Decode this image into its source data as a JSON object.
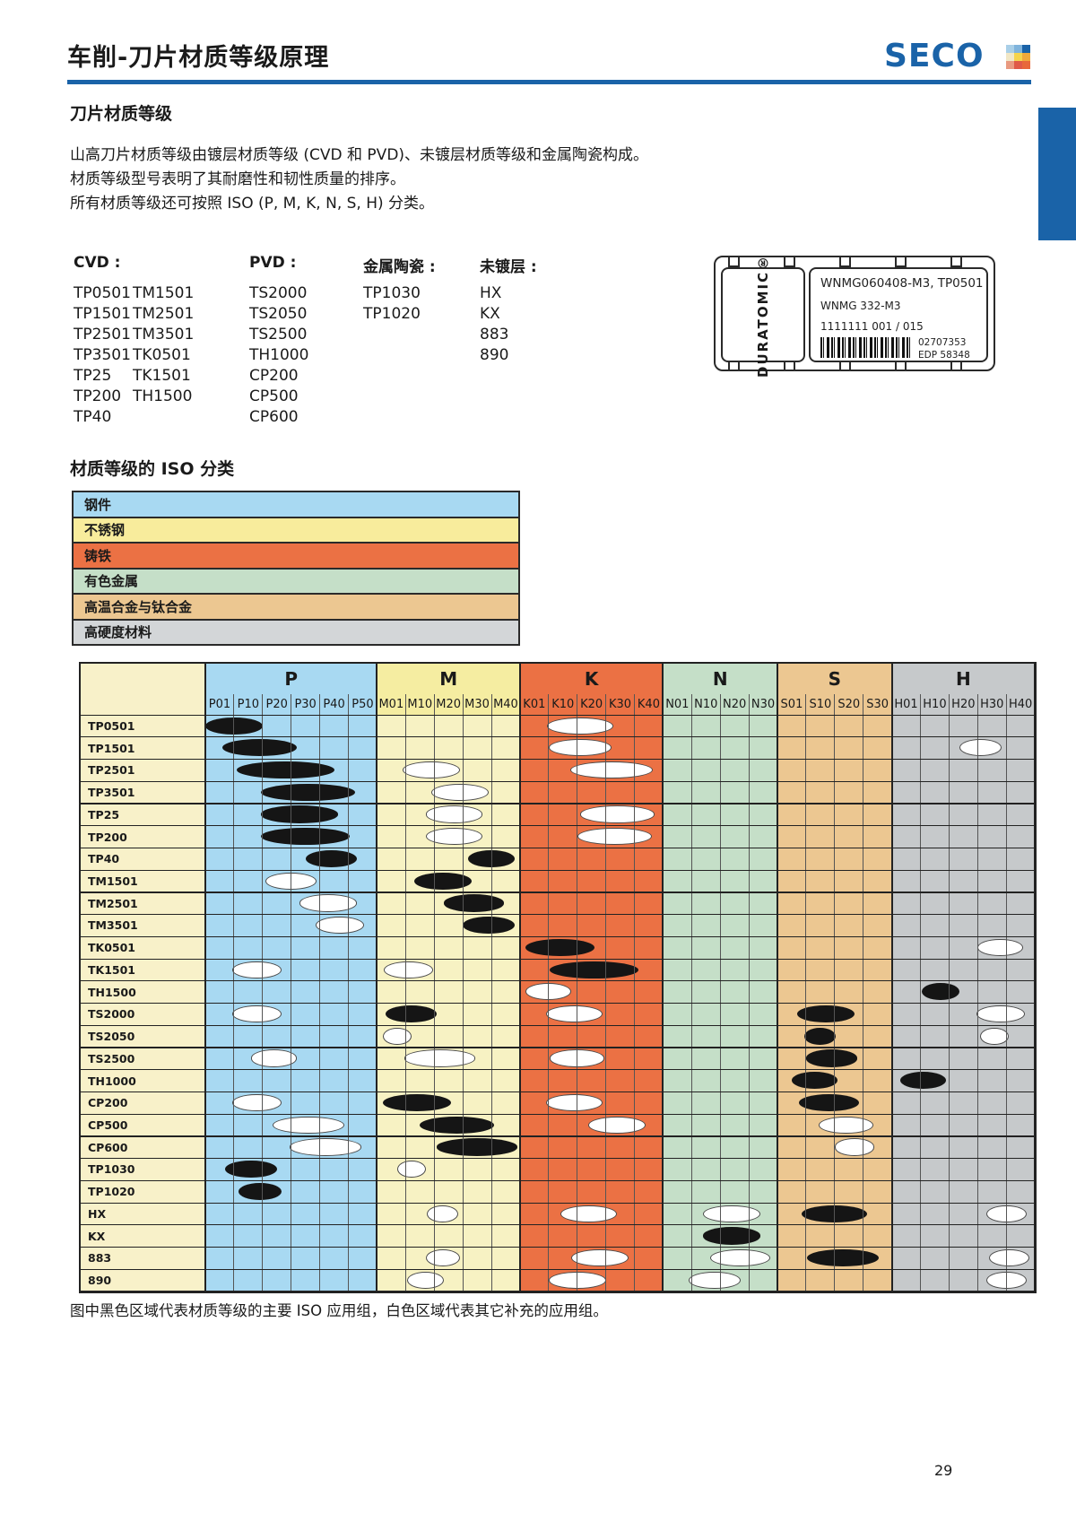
{
  "page": {
    "number": "29"
  },
  "header": {
    "title": "车削-刀片材质等级原理",
    "brand": "SECO",
    "brand_color": "#1a63a8",
    "mark_colors": [
      "#a9cfe8",
      "#7fb3dc",
      "#1a63a8",
      "#f1e7c6",
      "#f5d44d",
      "#f0a93c",
      "#e99a80",
      "#e05a47",
      "#e8683a"
    ]
  },
  "intro": {
    "heading": "刀片材质等级",
    "lines": [
      "山高刀片材质等级由镀层材质等级 (CVD 和 PVD)、未镀层材质等级和金属陶瓷构成。",
      "材质等级型号表明了其耐磨性和韧性质量的排序。",
      "所有材质等级还可按照 ISO (P, M, K, N, S, H) 分类。"
    ]
  },
  "grade_lists": {
    "cvd": {
      "label": "CVD :",
      "col1": [
        "TP0501",
        "TP1501",
        "TP2501",
        "TP3501",
        "TP25",
        "TP200",
        "TP40"
      ],
      "col2": [
        "TM1501",
        "TM2501",
        "TM3501",
        "TK0501",
        "TK1501",
        "TH1500"
      ]
    },
    "pvd": {
      "label": "PVD :",
      "items": [
        "TS2000",
        "TS2050",
        "TS2500",
        "TH1000",
        "CP200",
        "CP500",
        "CP600"
      ]
    },
    "cermet": {
      "label": "金属陶瓷 :",
      "items": [
        "TP1030",
        "TP1020"
      ]
    },
    "uncoated": {
      "label": "未镀层 :",
      "items": [
        "HX",
        "KX",
        "883",
        "890"
      ]
    }
  },
  "label_box": {
    "brand_vertical": "DURATOMIC®",
    "line1": "WNMG060408-M3, TP0501",
    "line2": "WNMG 332-M3",
    "line3": "1111111 001 / 015",
    "code1": "02707353",
    "code2": "EDP 58348"
  },
  "iso_section": {
    "heading": "材质等级的 ISO 分类",
    "legend": [
      {
        "label": "钢件",
        "color": "#a8d9f2"
      },
      {
        "label": "不锈钢",
        "color": "#f8ec9c"
      },
      {
        "label": "铸铁",
        "color": "#eb7144"
      },
      {
        "label": "有色金属",
        "color": "#c5dfc8"
      },
      {
        "label": "高温合金与钛合金",
        "color": "#ecc791"
      },
      {
        "label": "高硬度材料",
        "color": "#d3d6d8"
      }
    ]
  },
  "chart_data": {
    "type": "table",
    "description": "ISO application range matrix: black ellipse = main ISO application group, white ellipse = supplementary application group",
    "label_col_color": "#f8f1c9",
    "black_fill": "#151515",
    "white_fill": "#ffffff",
    "groups": [
      {
        "label": "P",
        "color": "#a8d9f2",
        "body": "#a8d9f2",
        "cols": [
          "P01",
          "P10",
          "P20",
          "P30",
          "P40",
          "P50"
        ]
      },
      {
        "label": "M",
        "color": "#f5eda1",
        "body": "#f7f2c3",
        "cols": [
          "M01",
          "M10",
          "M20",
          "M30",
          "M40"
        ]
      },
      {
        "label": "K",
        "color": "#eb7144",
        "body": "#eb7144",
        "cols": [
          "K01",
          "K10",
          "K20",
          "K30",
          "K40"
        ]
      },
      {
        "label": "N",
        "color": "#c5dfc8",
        "body": "#c5dfc8",
        "cols": [
          "N01",
          "N10",
          "N20",
          "N30"
        ]
      },
      {
        "label": "S",
        "color": "#ecc791",
        "body": "#ecc791",
        "cols": [
          "S01",
          "S10",
          "S20",
          "S30"
        ]
      },
      {
        "label": "H",
        "color": "#c6c9cb",
        "body": "#c6c9cb",
        "cols": [
          "H01",
          "H10",
          "H20",
          "H30",
          "H40"
        ]
      }
    ],
    "rows": [
      {
        "label": "TP0501",
        "marks": [
          {
            "c": 0.5,
            "w": 2.0,
            "f": "black"
          },
          {
            "c": 12.6,
            "w": 2.3,
            "f": "white"
          }
        ]
      },
      {
        "label": "TP1501",
        "marks": [
          {
            "c": 1.4,
            "w": 2.6,
            "f": "black"
          },
          {
            "c": 12.6,
            "w": 2.2,
            "f": "white"
          },
          {
            "c": 26.6,
            "w": 1.5,
            "f": "white"
          }
        ]
      },
      {
        "label": "TP2501",
        "marks": [
          {
            "c": 2.3,
            "w": 3.4,
            "f": "black"
          },
          {
            "c": 7.4,
            "w": 2.0,
            "f": "white"
          },
          {
            "c": 13.7,
            "w": 2.9,
            "f": "white"
          }
        ]
      },
      {
        "label": "TP3501",
        "marks": [
          {
            "c": 3.1,
            "w": 3.3,
            "f": "black"
          },
          {
            "c": 8.4,
            "w": 2.0,
            "f": "white"
          }
        ]
      },
      {
        "label": "TP25",
        "marks": [
          {
            "c": 2.8,
            "w": 2.7,
            "f": "black"
          },
          {
            "c": 8.2,
            "w": 2.0,
            "f": "white"
          },
          {
            "c": 13.9,
            "w": 2.6,
            "f": "white"
          }
        ]
      },
      {
        "label": "TP200",
        "marks": [
          {
            "c": 3.0,
            "w": 3.1,
            "f": "black"
          },
          {
            "c": 8.2,
            "w": 2.0,
            "f": "white"
          },
          {
            "c": 13.8,
            "w": 2.6,
            "f": "white"
          }
        ]
      },
      {
        "label": "TP40",
        "marks": [
          {
            "c": 3.9,
            "w": 1.8,
            "f": "black"
          },
          {
            "c": 9.5,
            "w": 1.6,
            "f": "black"
          }
        ]
      },
      {
        "label": "TM1501",
        "marks": [
          {
            "c": 2.5,
            "w": 1.8,
            "f": "white"
          },
          {
            "c": 7.8,
            "w": 2.0,
            "f": "black"
          }
        ]
      },
      {
        "label": "TM2501",
        "marks": [
          {
            "c": 3.8,
            "w": 2.0,
            "f": "white"
          },
          {
            "c": 8.9,
            "w": 2.1,
            "f": "black"
          }
        ]
      },
      {
        "label": "TM3501",
        "marks": [
          {
            "c": 4.2,
            "w": 1.7,
            "f": "white"
          },
          {
            "c": 9.4,
            "w": 1.8,
            "f": "black"
          }
        ]
      },
      {
        "label": "TK0501",
        "marks": [
          {
            "c": 11.9,
            "w": 2.4,
            "f": "black"
          },
          {
            "c": 27.3,
            "w": 1.6,
            "f": "white"
          }
        ]
      },
      {
        "label": "TK1501",
        "marks": [
          {
            "c": 1.3,
            "w": 1.7,
            "f": "white"
          },
          {
            "c": 6.6,
            "w": 1.7,
            "f": "white"
          },
          {
            "c": 13.1,
            "w": 3.1,
            "f": "black"
          }
        ]
      },
      {
        "label": "TH1500",
        "marks": [
          {
            "c": 11.5,
            "w": 1.6,
            "f": "white"
          },
          {
            "c": 25.2,
            "w": 1.3,
            "f": "black"
          }
        ]
      },
      {
        "label": "TS2000",
        "marks": [
          {
            "c": 1.3,
            "w": 1.7,
            "f": "white"
          },
          {
            "c": 6.7,
            "w": 1.8,
            "f": "black"
          },
          {
            "c": 12.4,
            "w": 2.0,
            "f": "white"
          },
          {
            "c": 21.2,
            "w": 2.0,
            "f": "black"
          },
          {
            "c": 27.3,
            "w": 1.7,
            "f": "white"
          }
        ]
      },
      {
        "label": "TS2050",
        "marks": [
          {
            "c": 6.2,
            "w": 1.0,
            "f": "white"
          },
          {
            "c": 21.0,
            "w": 1.1,
            "f": "black"
          },
          {
            "c": 27.1,
            "w": 1.0,
            "f": "white"
          }
        ]
      },
      {
        "label": "TS2500",
        "marks": [
          {
            "c": 1.9,
            "w": 1.6,
            "f": "white"
          },
          {
            "c": 7.7,
            "w": 2.5,
            "f": "white"
          },
          {
            "c": 12.5,
            "w": 1.9,
            "f": "white"
          },
          {
            "c": 21.4,
            "w": 1.8,
            "f": "black"
          }
        ]
      },
      {
        "label": "TH1000",
        "marks": [
          {
            "c": 20.8,
            "w": 1.6,
            "f": "black"
          },
          {
            "c": 24.6,
            "w": 1.6,
            "f": "black"
          }
        ]
      },
      {
        "label": "CP200",
        "marks": [
          {
            "c": 1.3,
            "w": 1.7,
            "f": "white"
          },
          {
            "c": 6.9,
            "w": 2.4,
            "f": "black"
          },
          {
            "c": 12.4,
            "w": 2.0,
            "f": "white"
          },
          {
            "c": 21.3,
            "w": 2.1,
            "f": "black"
          }
        ]
      },
      {
        "label": "CP500",
        "marks": [
          {
            "c": 3.1,
            "w": 2.5,
            "f": "white"
          },
          {
            "c": 8.3,
            "w": 2.6,
            "f": "black"
          },
          {
            "c": 13.9,
            "w": 2.0,
            "f": "white"
          },
          {
            "c": 21.9,
            "w": 1.9,
            "f": "white"
          }
        ]
      },
      {
        "label": "CP600",
        "marks": [
          {
            "c": 3.7,
            "w": 2.5,
            "f": "white"
          },
          {
            "c": 9.0,
            "w": 2.8,
            "f": "black"
          },
          {
            "c": 22.2,
            "w": 1.4,
            "f": "white"
          }
        ]
      },
      {
        "label": "TP1030",
        "marks": [
          {
            "c": 1.1,
            "w": 1.8,
            "f": "black"
          },
          {
            "c": 6.7,
            "w": 1.0,
            "f": "white"
          }
        ]
      },
      {
        "label": "TP1020",
        "marks": [
          {
            "c": 1.4,
            "w": 1.5,
            "f": "black"
          }
        ]
      },
      {
        "label": "HX",
        "marks": [
          {
            "c": 7.8,
            "w": 1.1,
            "f": "white"
          },
          {
            "c": 12.9,
            "w": 2.0,
            "f": "white"
          },
          {
            "c": 17.9,
            "w": 2.0,
            "f": "white"
          },
          {
            "c": 21.5,
            "w": 2.3,
            "f": "black"
          },
          {
            "c": 27.5,
            "w": 1.4,
            "f": "white"
          }
        ]
      },
      {
        "label": "KX",
        "marks": [
          {
            "c": 17.9,
            "w": 2.0,
            "f": "black"
          }
        ]
      },
      {
        "label": "883",
        "marks": [
          {
            "c": 7.8,
            "w": 1.2,
            "f": "white"
          },
          {
            "c": 13.3,
            "w": 2.0,
            "f": "white"
          },
          {
            "c": 18.2,
            "w": 2.1,
            "f": "white"
          },
          {
            "c": 21.8,
            "w": 2.5,
            "f": "black"
          },
          {
            "c": 27.6,
            "w": 1.4,
            "f": "white"
          }
        ]
      },
      {
        "label": "890",
        "marks": [
          {
            "c": 7.2,
            "w": 1.3,
            "f": "white"
          },
          {
            "c": 12.5,
            "w": 2.0,
            "f": "white"
          },
          {
            "c": 17.3,
            "w": 1.8,
            "f": "white"
          },
          {
            "c": 27.5,
            "w": 1.4,
            "f": "white"
          }
        ]
      }
    ]
  },
  "footer_note": "图中黑色区域代表材质等级的主要 ISO 应用组，白色区域代表其它补充的应用组。"
}
